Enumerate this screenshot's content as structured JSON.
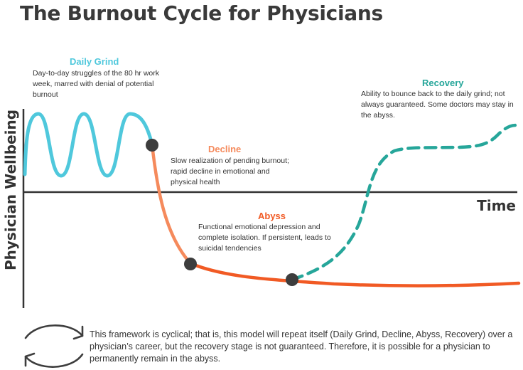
{
  "title": "The Burnout Cycle for Physicians",
  "axes": {
    "y_label": "Physician Wellbeing",
    "x_label": "Time"
  },
  "colors": {
    "daily_grind": "#4fc8dc",
    "decline": "#f58a5c",
    "abyss": "#f15a24",
    "recovery": "#26a69a",
    "axis": "#333333",
    "marker": "#3d3d3d"
  },
  "stages": {
    "daily_grind": {
      "title": "Daily Grind",
      "description": "Day-to-day struggles of the 80 hr work week, marred with denial of potential burnout"
    },
    "decline": {
      "title": "Decline",
      "description": "Slow realization of pending burnout; rapid decline in emotional and physical health"
    },
    "abyss": {
      "title": "Abyss",
      "description": "Functional emotional depression and complete isolation. If persistent, leads to suicidal tendencies"
    },
    "recovery": {
      "title": "Recovery",
      "description": "Ability to bounce back to the daily grind; not always guaranteed. Some doctors may stay in the abyss."
    }
  },
  "footer": {
    "icon": "cycle-arrows-icon",
    "text": "This framework is cyclical; that is, this model will repeat itself (Daily Grind, Decline, Abyss, Recovery) over a physician’s career, but the recovery stage is not guaranteed. Therefore, it is possible for a physician to permanently remain in the abyss."
  }
}
